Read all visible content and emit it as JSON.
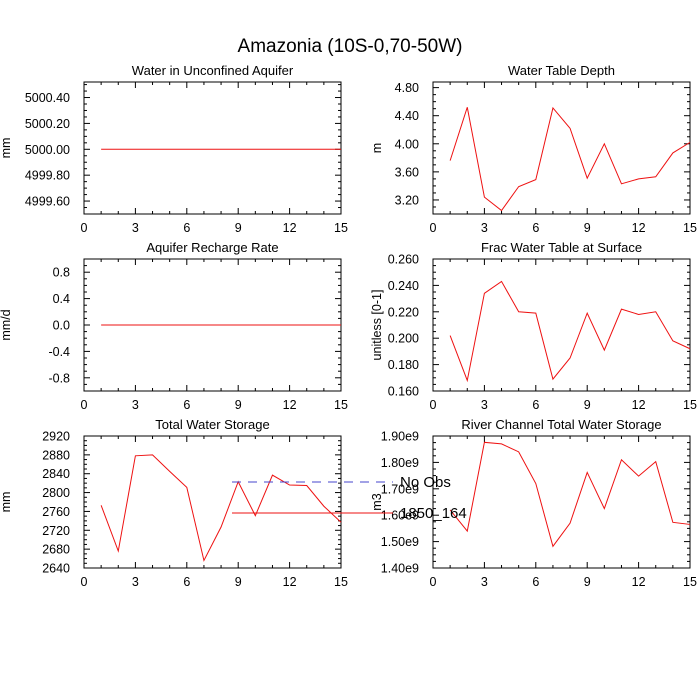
{
  "title": "Amazonia (10S-0,70-50W)",
  "colors": {
    "series": "#ee1111",
    "obs": "#4444cc",
    "axis": "#000000"
  },
  "legend": [
    {
      "label": "No Obs",
      "style": "dashed",
      "color": "#4444cc"
    },
    {
      "label": "1850_164",
      "style": "solid",
      "color": "#ee1111"
    }
  ],
  "chart_data": [
    {
      "type": "line",
      "title": "Water in Unconfined Aquifer",
      "ylabel": "mm",
      "xlim": [
        0,
        15
      ],
      "ylim": [
        4999.5,
        5000.52
      ],
      "xticks": [
        0,
        3,
        6,
        9,
        12,
        15
      ],
      "xtick_labels": [
        "0",
        "3",
        "6",
        "9",
        "12",
        "15"
      ],
      "yticks": [
        4999.6,
        4999.8,
        5000.0,
        5000.2,
        5000.4
      ],
      "ytick_labels": [
        "4999.60",
        "4999.80",
        "5000.00",
        "5000.20",
        "5000.40"
      ],
      "series": [
        {
          "x": [
            1,
            2,
            3,
            4,
            5,
            6,
            7,
            8,
            9,
            10,
            11,
            12,
            13,
            14,
            15
          ],
          "values": [
            5000,
            5000,
            5000,
            5000,
            5000,
            5000,
            5000,
            5000,
            5000,
            5000,
            5000,
            5000,
            5000,
            5000,
            5000
          ]
        }
      ]
    },
    {
      "type": "line",
      "title": "Water Table Depth",
      "ylabel": "m",
      "xlim": [
        0,
        15
      ],
      "ylim": [
        3.0,
        4.88
      ],
      "xticks": [
        0,
        3,
        6,
        9,
        12,
        15
      ],
      "xtick_labels": [
        "0",
        "3",
        "6",
        "9",
        "12",
        "15"
      ],
      "yticks": [
        3.2,
        3.6,
        4.0,
        4.4,
        4.8
      ],
      "ytick_labels": [
        "3.20",
        "3.60",
        "4.00",
        "4.40",
        "4.80"
      ],
      "series": [
        {
          "x": [
            1,
            2,
            3,
            4,
            5,
            6,
            7,
            8,
            9,
            10,
            11,
            12,
            13,
            14,
            15
          ],
          "values": [
            3.76,
            4.52,
            3.24,
            3.05,
            3.39,
            3.49,
            4.51,
            4.22,
            3.51,
            4.0,
            3.43,
            3.5,
            3.53,
            3.87,
            4.02
          ]
        }
      ]
    },
    {
      "type": "line",
      "title": "Aquifer Recharge Rate",
      "ylabel": "mm/d",
      "xlim": [
        0,
        15
      ],
      "ylim": [
        -1.0,
        1.0
      ],
      "xticks": [
        0,
        3,
        6,
        9,
        12,
        15
      ],
      "xtick_labels": [
        "0",
        "3",
        "6",
        "9",
        "12",
        "15"
      ],
      "yticks": [
        -0.8,
        -0.4,
        0.0,
        0.4,
        0.8
      ],
      "ytick_labels": [
        "-0.8",
        "-0.4",
        "0.0",
        "0.4",
        "0.8"
      ],
      "series": [
        {
          "x": [
            1,
            2,
            3,
            4,
            5,
            6,
            7,
            8,
            9,
            10,
            11,
            12,
            13,
            14,
            15
          ],
          "values": [
            0,
            0,
            0,
            0,
            0,
            0,
            0,
            0,
            0,
            0,
            0,
            0,
            0,
            0,
            0
          ]
        }
      ]
    },
    {
      "type": "line",
      "title": "Frac Water Table at Surface",
      "ylabel": "unitless [0-1]",
      "xlim": [
        0,
        15
      ],
      "ylim": [
        0.16,
        0.26
      ],
      "xticks": [
        0,
        3,
        6,
        9,
        12,
        15
      ],
      "xtick_labels": [
        "0",
        "3",
        "6",
        "9",
        "12",
        "15"
      ],
      "yticks": [
        0.16,
        0.18,
        0.2,
        0.22,
        0.24,
        0.26
      ],
      "ytick_labels": [
        "0.160",
        "0.180",
        "0.200",
        "0.220",
        "0.240",
        "0.260"
      ],
      "series": [
        {
          "x": [
            1,
            2,
            3,
            4,
            5,
            6,
            7,
            8,
            9,
            10,
            11,
            12,
            13,
            14,
            15
          ],
          "values": [
            0.202,
            0.168,
            0.234,
            0.243,
            0.22,
            0.219,
            0.169,
            0.185,
            0.219,
            0.191,
            0.222,
            0.218,
            0.22,
            0.198,
            0.192
          ]
        }
      ]
    },
    {
      "type": "line",
      "title": "Total Water Storage",
      "ylabel": "mm",
      "xlim": [
        0,
        15
      ],
      "ylim": [
        2640,
        2920
      ],
      "xticks": [
        0,
        3,
        6,
        9,
        12,
        15
      ],
      "xtick_labels": [
        "0",
        "3",
        "6",
        "9",
        "12",
        "15"
      ],
      "yticks": [
        2640,
        2680,
        2720,
        2760,
        2800,
        2840,
        2880,
        2920
      ],
      "ytick_labels": [
        "2640",
        "2680",
        "2720",
        "2760",
        "2800",
        "2840",
        "2880",
        "2920"
      ],
      "series": [
        {
          "x": [
            1,
            2,
            3,
            4,
            5,
            6,
            7,
            8,
            9,
            10,
            11,
            12,
            13,
            14,
            15
          ],
          "values": [
            2773,
            2676,
            2878,
            2880,
            2845,
            2811,
            2656,
            2727,
            2823,
            2751,
            2837,
            2816,
            2815,
            2771,
            2737
          ]
        }
      ]
    },
    {
      "type": "line",
      "title": "River Channel Total Water Storage",
      "ylabel": "m3",
      "xlim": [
        0,
        15
      ],
      "ylim": [
        1.4,
        1.9
      ],
      "xticks": [
        0,
        3,
        6,
        9,
        12,
        15
      ],
      "xtick_labels": [
        "0",
        "3",
        "6",
        "9",
        "12",
        "15"
      ],
      "yticks": [
        1.4,
        1.5,
        1.6,
        1.7,
        1.8,
        1.9
      ],
      "ytick_labels": [
        "1.40e9",
        "1.50e9",
        "1.60e9",
        "1.70e9",
        "1.80e9",
        "1.90e9"
      ],
      "series": [
        {
          "x": [
            1,
            2,
            3,
            4,
            5,
            6,
            7,
            8,
            9,
            10,
            11,
            12,
            13,
            14,
            15
          ],
          "values": [
            1.62,
            1.54,
            1.876,
            1.87,
            1.84,
            1.72,
            1.482,
            1.57,
            1.762,
            1.625,
            1.81,
            1.748,
            1.803,
            1.573,
            1.565
          ]
        }
      ]
    }
  ]
}
